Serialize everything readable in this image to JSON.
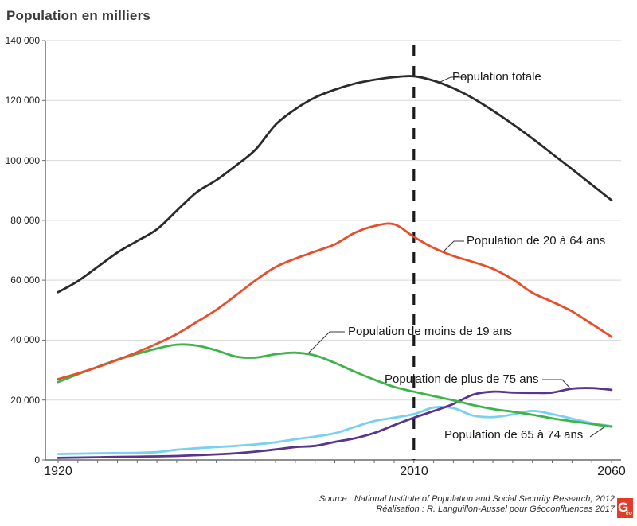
{
  "title": "Population en milliers",
  "chart_data": {
    "type": "line",
    "x_label_years": [
      1920,
      2010,
      2060
    ],
    "reference_line_year": 2010,
    "ylim": [
      0,
      140000
    ],
    "ytick_step": 20000,
    "ytick_labels": [
      "0",
      "20 000",
      "40 000",
      "60 000",
      "80 000",
      "100 000",
      "120 000",
      "140 000"
    ],
    "grid": "horizontal",
    "x": [
      1920,
      1925,
      1930,
      1935,
      1940,
      1945,
      1950,
      1955,
      1960,
      1965,
      1970,
      1975,
      1980,
      1985,
      1990,
      1995,
      2000,
      2005,
      2010,
      2015,
      2020,
      2025,
      2030,
      2035,
      2040,
      2045,
      2050,
      2055,
      2060
    ],
    "series": [
      {
        "key": "total",
        "name": "Population totale",
        "color": "#2b2b2b",
        "values": [
          56000,
          59700,
          64450,
          69250,
          73100,
          77000,
          83200,
          89300,
          93400,
          98300,
          103700,
          111900,
          117100,
          121000,
          123600,
          125600,
          126900,
          127800,
          128100,
          126600,
          124100,
          120700,
          116600,
          112100,
          107300,
          102200,
          97100,
          91900,
          86700
        ]
      },
      {
        "key": "age_20_64",
        "name": "Population de 20 à 64 ans",
        "color": "#e84e2c",
        "values": [
          27000,
          28900,
          31000,
          33400,
          36000,
          38800,
          42000,
          46000,
          50100,
          55000,
          60000,
          64400,
          67200,
          69600,
          72000,
          75800,
          78100,
          78700,
          74500,
          70800,
          68100,
          66100,
          63800,
          60300,
          55800,
          52800,
          49600,
          45400,
          41100
        ]
      },
      {
        "key": "age_0_19",
        "name": "Population de moins de 19 ans",
        "color": "#3db449",
        "values": [
          26000,
          28600,
          31100,
          33500,
          35400,
          37200,
          38500,
          38200,
          36600,
          34500,
          34200,
          35300,
          35800,
          34900,
          32400,
          29500,
          26800,
          24400,
          22800,
          21300,
          19900,
          18300,
          17000,
          16100,
          15100,
          13900,
          12900,
          12000,
          11100
        ]
      },
      {
        "key": "age_65_74",
        "name": "Population de 65 à 74 ans",
        "color": "#79d1f1",
        "values": [
          2000,
          2100,
          2210,
          2300,
          2400,
          2600,
          3400,
          3900,
          4300,
          4700,
          5200,
          5900,
          6900,
          7800,
          8900,
          11000,
          13000,
          14100,
          15300,
          17500,
          17300,
          14800,
          14300,
          15200,
          16400,
          15300,
          13800,
          12300,
          11300
        ]
      },
      {
        "key": "age_75_plus",
        "name": "Population de plus de 75 ans",
        "color": "#59358f",
        "values": [
          700,
          800,
          900,
          1000,
          1100,
          1200,
          1340,
          1600,
          1870,
          2240,
          2800,
          3500,
          4300,
          4700,
          6000,
          7200,
          9000,
          11600,
          14100,
          16300,
          18700,
          21800,
          22800,
          22500,
          22400,
          22500,
          23800,
          24000,
          23400
        ]
      }
    ]
  },
  "annotations": [
    {
      "label": "Population totale"
    },
    {
      "label": "Population de 20 à 64 ans"
    },
    {
      "label": "Population de moins de 19 ans"
    },
    {
      "label": "Population de plus de 75 ans"
    },
    {
      "label": "Population de 65 à 74 ans"
    }
  ],
  "footer": {
    "source_line": "Source : National Institute of Population and Social Security Research, 2012",
    "credit_line": "Réalisation : R. Languillon-Aussel pour Géoconfluences 2017",
    "logo_g": "G",
    "logo_eo": "éo"
  },
  "colors": {
    "total": "#2b2b2b",
    "age_20_64": "#e84e2c",
    "age_0_19": "#3db449",
    "age_65_74": "#79d1f1",
    "age_75_plus": "#59358f",
    "grid": "#d8d8d8",
    "axis": "#4d4d4d",
    "reference_line": "#1a1a1a",
    "logo_background": "#e23b28"
  }
}
